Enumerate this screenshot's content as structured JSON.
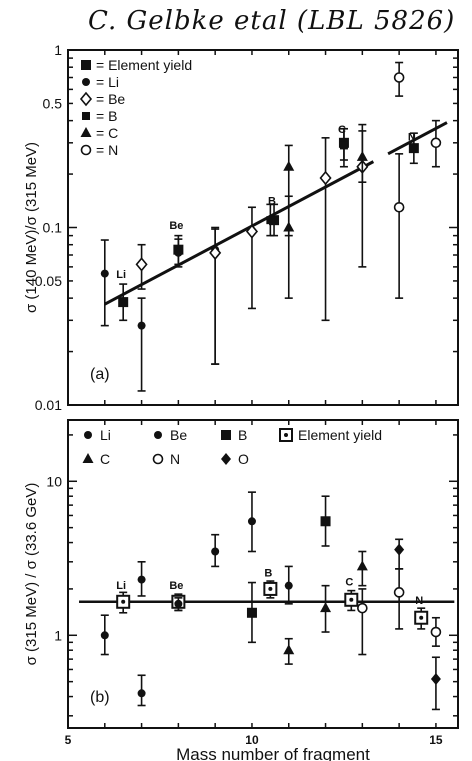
{
  "header_note": "C. Gelbke etal (LBL 5826)",
  "chart_data": [
    {
      "type": "scatter",
      "panel_label": "(a)",
      "ylabel": "σ (140 MeV)/σ (315 MeV)",
      "xlim": [
        5,
        15.6
      ],
      "ylim": [
        0.01,
        1
      ],
      "yscale": "log",
      "yticks": [
        0.01,
        0.05,
        0.1,
        0.5,
        1
      ],
      "ytick_labels": [
        "0.01",
        "0.05",
        "0.1",
        "0.5",
        "1"
      ],
      "legend": {
        "placement": "top-left",
        "entries": [
          {
            "marker": "filled-square",
            "text": "= Element yield"
          },
          {
            "marker": "dot",
            "text": "= Li"
          },
          {
            "marker": "open-diamond",
            "text": "= Be"
          },
          {
            "marker": "filled-square-small",
            "text": "= B"
          },
          {
            "marker": "triangle",
            "text": "= C"
          },
          {
            "marker": "open-circle",
            "text": "= N"
          }
        ]
      },
      "fit_line": {
        "x": [
          6,
          15.3
        ],
        "y": [
          0.037,
          0.39
        ],
        "gap": [
          13.3,
          13.7
        ]
      },
      "element_labels": [
        {
          "text": "Li",
          "x": 6.5,
          "y": 0.052
        },
        {
          "text": "Be",
          "x": 8.0,
          "y": 0.098
        },
        {
          "text": "B",
          "x": 10.6,
          "y": 0.135
        },
        {
          "text": "C",
          "x": 12.5,
          "y": 0.34
        },
        {
          "text": "N",
          "x": 14.4,
          "y": 0.31
        }
      ],
      "series": [
        {
          "name": "Element yield",
          "marker": "filled-square",
          "points": [
            {
              "x": 6.5,
              "y": 0.038,
              "lo": 0.03,
              "hi": 0.048
            },
            {
              "x": 8.0,
              "y": 0.075,
              "lo": 0.062,
              "hi": 0.09
            },
            {
              "x": 10.6,
              "y": 0.11,
              "lo": 0.09,
              "hi": 0.135
            },
            {
              "x": 12.5,
              "y": 0.3,
              "lo": 0.24,
              "hi": 0.36
            },
            {
              "x": 14.4,
              "y": 0.28,
              "lo": 0.23,
              "hi": 0.34
            }
          ]
        },
        {
          "name": "Li",
          "marker": "dot",
          "points": [
            {
              "x": 6,
              "y": 0.055,
              "lo": 0.028,
              "hi": 0.085
            },
            {
              "x": 7,
              "y": 0.028,
              "lo": 0.012,
              "hi": 0.04
            },
            {
              "x": 8,
              "y": 0.072,
              "lo": 0.06,
              "hi": 0.086
            },
            {
              "x": 9,
              "y": 0.075,
              "lo": 0.017,
              "hi": 0.1
            }
          ]
        },
        {
          "name": "Be",
          "marker": "open-diamond",
          "points": [
            {
              "x": 7,
              "y": 0.062,
              "lo": 0.045,
              "hi": 0.08
            },
            {
              "x": 9,
              "y": 0.072,
              "lo": 0.017,
              "hi": 0.098
            },
            {
              "x": 10,
              "y": 0.095,
              "lo": 0.035,
              "hi": 0.13
            },
            {
              "x": 12,
              "y": 0.19,
              "lo": 0.03,
              "hi": 0.32
            },
            {
              "x": 13,
              "y": 0.22,
              "lo": 0.06,
              "hi": 0.38
            }
          ]
        },
        {
          "name": "B",
          "marker": "filled-square-small",
          "points": [
            {
              "x": 10.5,
              "y": 0.11,
              "lo": 0.09,
              "hi": 0.135
            },
            {
              "x": 12.5,
              "y": 0.29,
              "lo": 0.22,
              "hi": 0.36
            }
          ]
        },
        {
          "name": "C",
          "marker": "triangle",
          "points": [
            {
              "x": 11,
              "y": 0.22,
              "lo": 0.09,
              "hi": 0.29
            },
            {
              "x": 11,
              "y": 0.1,
              "lo": 0.04,
              "hi": 0.15
            },
            {
              "x": 13,
              "y": 0.25,
              "lo": 0.18,
              "hi": 0.35
            }
          ]
        },
        {
          "name": "N",
          "marker": "open-circle",
          "points": [
            {
              "x": 14,
              "y": 0.13,
              "lo": 0.04,
              "hi": 0.26
            },
            {
              "x": 14,
              "y": 0.7,
              "lo": 0.55,
              "hi": 0.85
            },
            {
              "x": 15,
              "y": 0.3,
              "lo": 0.22,
              "hi": 0.4
            }
          ]
        }
      ]
    },
    {
      "type": "scatter",
      "panel_label": "(b)",
      "ylabel": "σ (315 MeV) / σ (33.6 GeV)",
      "xlabel": "Mass number of fragment",
      "xlim": [
        5,
        15.6
      ],
      "ylim": [
        0.25,
        25
      ],
      "yscale": "log",
      "xticks": [
        5,
        10,
        15
      ],
      "xtick_labels": [
        "5",
        "10",
        "15"
      ],
      "yticks": [
        1,
        10
      ],
      "ytick_labels": [
        "1",
        "10"
      ],
      "legend": {
        "placement": "top",
        "entries": [
          {
            "marker": "dot",
            "text": "Li"
          },
          {
            "marker": "dot-bar",
            "text": "Be"
          },
          {
            "marker": "filled-square",
            "text": "B"
          },
          {
            "marker": "open-square-dot",
            "text": "Element yield"
          },
          {
            "marker": "triangle",
            "text": "C"
          },
          {
            "marker": "open-circle",
            "text": "N"
          },
          {
            "marker": "diamond",
            "text": "O"
          }
        ]
      },
      "fit_line": {
        "x": [
          5.3,
          15.5
        ],
        "y": [
          1.65,
          1.65
        ]
      },
      "element_labels": [
        {
          "text": "Li",
          "x": 6.5,
          "y": 2.0
        },
        {
          "text": "Be",
          "x": 8.0,
          "y": 2.0
        },
        {
          "text": "B",
          "x": 10.5,
          "y": 2.4
        },
        {
          "text": "C",
          "x": 12.7,
          "y": 2.1
        },
        {
          "text": "N",
          "x": 14.6,
          "y": 1.6
        }
      ],
      "series": [
        {
          "name": "Element yield",
          "marker": "open-square-dot",
          "points": [
            {
              "x": 6.5,
              "y": 1.65,
              "lo": 1.4,
              "hi": 1.9
            },
            {
              "x": 8.0,
              "y": 1.65,
              "lo": 1.45,
              "hi": 1.85
            },
            {
              "x": 10.5,
              "y": 2.0,
              "lo": 1.75,
              "hi": 2.25
            },
            {
              "x": 12.7,
              "y": 1.7,
              "lo": 1.45,
              "hi": 1.95
            },
            {
              "x": 14.6,
              "y": 1.3,
              "lo": 1.1,
              "hi": 1.5
            }
          ]
        },
        {
          "name": "Li",
          "marker": "dot",
          "points": [
            {
              "x": 6,
              "y": 1.0,
              "lo": 0.75,
              "hi": 1.35
            },
            {
              "x": 7,
              "y": 0.42,
              "lo": 0.35,
              "hi": 0.55
            },
            {
              "x": 7,
              "y": 2.3,
              "lo": 1.8,
              "hi": 3.0
            },
            {
              "x": 8,
              "y": 1.6,
              "lo": 1.45,
              "hi": 1.75
            }
          ]
        },
        {
          "name": "Be",
          "marker": "dot-bar",
          "points": [
            {
              "x": 9,
              "y": 3.5,
              "lo": 2.8,
              "hi": 4.5
            },
            {
              "x": 10,
              "y": 5.5,
              "lo": 3.5,
              "hi": 8.5
            },
            {
              "x": 11,
              "y": 2.1,
              "lo": 1.6,
              "hi": 2.8
            }
          ]
        },
        {
          "name": "B",
          "marker": "filled-square",
          "points": [
            {
              "x": 10,
              "y": 1.4,
              "lo": 0.9,
              "hi": 2.2
            },
            {
              "x": 12,
              "y": 5.5,
              "lo": 3.8,
              "hi": 8.0
            }
          ]
        },
        {
          "name": "C",
          "marker": "triangle",
          "points": [
            {
              "x": 11,
              "y": 0.8,
              "lo": 0.65,
              "hi": 0.95
            },
            {
              "x": 12,
              "y": 1.5,
              "lo": 1.05,
              "hi": 2.1
            },
            {
              "x": 13,
              "y": 2.8,
              "lo": 2.1,
              "hi": 3.5
            }
          ]
        },
        {
          "name": "N",
          "marker": "open-circle",
          "points": [
            {
              "x": 13,
              "y": 1.5,
              "lo": 0.75,
              "hi": 2.0
            },
            {
              "x": 14,
              "y": 1.9,
              "lo": 1.1,
              "hi": 2.7
            },
            {
              "x": 15,
              "y": 1.05,
              "lo": 0.85,
              "hi": 1.3
            }
          ]
        },
        {
          "name": "O",
          "marker": "diamond",
          "points": [
            {
              "x": 14,
              "y": 3.6,
              "lo": 2.7,
              "hi": 4.2
            },
            {
              "x": 15,
              "y": 0.52,
              "lo": 0.33,
              "hi": 0.72
            }
          ]
        }
      ]
    }
  ]
}
